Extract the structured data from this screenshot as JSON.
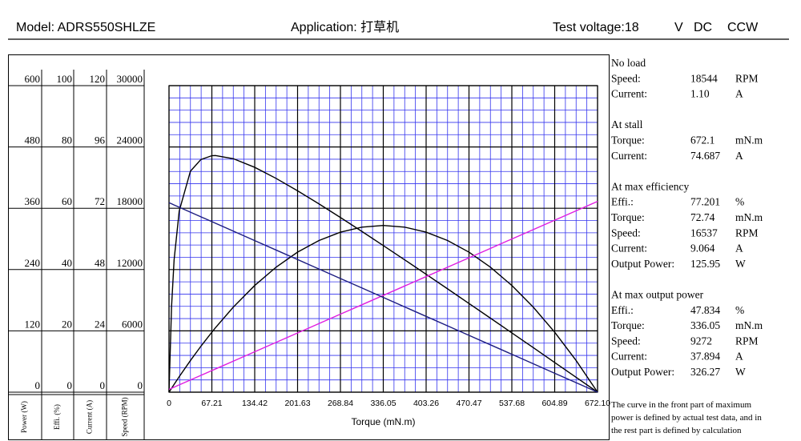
{
  "header": {
    "model": "Model: ADRS550SHLZE",
    "application": "Application:  打草机",
    "voltage": "Test voltage:18",
    "unit": "V",
    "current_type": "DC",
    "direction": "CCW"
  },
  "chart_data": {
    "type": "line",
    "x_label": "Torque (mN.m)",
    "x": [
      0,
      4,
      8,
      16,
      33.61,
      50,
      67.21,
      72.74,
      100.82,
      134.42,
      168.03,
      201.63,
      235.24,
      268.84,
      302.45,
      336.05,
      369.66,
      403.26,
      436.87,
      470.47,
      504.08,
      537.68,
      571.29,
      604.89,
      638.5,
      672.1
    ],
    "xlim": [
      0,
      672.1
    ],
    "xticks": [
      0,
      67.21,
      134.42,
      201.63,
      268.84,
      336.05,
      403.26,
      470.47,
      537.68,
      604.89,
      {
        "value": 672.1,
        "label": "672.10"
      }
    ],
    "grid": true,
    "series": [
      {
        "name": "Power (W)",
        "color": "#000000",
        "ylim": [
          0,
          600
        ],
        "yticks": [
          0,
          120,
          240,
          360,
          480,
          600
        ],
        "values": [
          0,
          7.72,
          15.35,
          30.33,
          62.01,
          89.87,
          117.47,
          125.95,
          166.42,
          208.83,
          244.73,
          274.1,
          296.91,
          313.23,
          323.03,
          326.27,
          323.04,
          313.26,
          296.95,
          274.07,
          244.72,
          208.84,
          166.44,
          117.44,
          61.98,
          0
        ]
      },
      {
        "name": "Effi. (%)",
        "color": "#000000",
        "ylim": [
          0,
          100
        ],
        "yticks": [
          0,
          20,
          40,
          60,
          80,
          100
        ],
        "values": [
          0,
          27.9,
          43.2,
          59.1,
          72.1,
          75.9,
          77.15,
          77.2,
          76.17,
          73.35,
          69.73,
          65.7,
          61.42,
          56.99,
          52.45,
          47.83,
          43.17,
          38.46,
          33.71,
          28.94,
          24.15,
          19.35,
          14.53,
          9.69,
          4.85,
          0
        ]
      },
      {
        "name": "Current (A)",
        "color": "#e01ee0",
        "ylim": [
          0,
          120
        ],
        "yticks": [
          0,
          24,
          48,
          72,
          96,
          120
        ],
        "values": [
          1.1,
          1.538,
          1.976,
          2.852,
          4.78,
          6.574,
          8.459,
          9.064,
          12.138,
          15.817,
          19.497,
          23.176,
          26.856,
          30.535,
          34.215,
          37.894,
          41.573,
          45.252,
          48.932,
          52.611,
          56.291,
          59.97,
          63.65,
          67.328,
          71.008,
          74.687
        ]
      },
      {
        "name": "Speed (RPM)",
        "color": "#1c1c80",
        "ylim": [
          0,
          30000
        ],
        "yticks": [
          0,
          6000,
          12000,
          18000,
          24000,
          30000
        ],
        "values": [
          18544,
          18434,
          18323,
          18103,
          17617,
          17164,
          16690,
          16537,
          15762,
          14835,
          13908,
          12981,
          12053,
          11126,
          10199,
          9272,
          8345,
          7418,
          6491,
          5563,
          4636,
          3709,
          2782,
          1854,
          927,
          0
        ]
      }
    ]
  },
  "panel": {
    "sections": [
      {
        "title": "No load",
        "rows": [
          [
            "Speed:",
            "18544",
            "RPM"
          ],
          [
            "Current:",
            "1.10",
            "A"
          ]
        ]
      },
      {
        "title": "At stall",
        "rows": [
          [
            "Torque:",
            "672.1",
            "mN.m"
          ],
          [
            "Current:",
            "74.687",
            "A"
          ]
        ]
      },
      {
        "title": "At max efficiency",
        "rows": [
          [
            "Effi.:",
            "77.201",
            "%"
          ],
          [
            "Torque:",
            "72.74",
            "mN.m"
          ],
          [
            "Speed:",
            "16537",
            "RPM"
          ],
          [
            "Current:",
            "9.064",
            "A"
          ],
          [
            "Output Power:",
            "125.95",
            "W"
          ]
        ]
      },
      {
        "title": "At max output power",
        "rows": [
          [
            "Effi.:",
            "47.834",
            "%"
          ],
          [
            "Torque:",
            "336.05",
            "mN.m"
          ],
          [
            "Speed:",
            "9272",
            "RPM"
          ],
          [
            "Current:",
            "37.894",
            "A"
          ],
          [
            "Output Power:",
            "326.27",
            "W"
          ]
        ]
      }
    ],
    "note": [
      "The curve in the front part of maximum",
      "power is defined by actual test data, and in",
      "the rest part is defined by calculation"
    ]
  }
}
